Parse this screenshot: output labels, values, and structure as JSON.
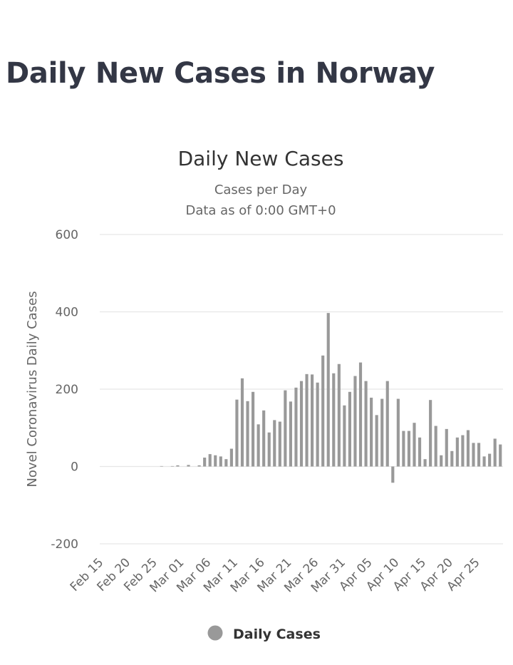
{
  "page": {
    "title": "Daily New Cases in Norway"
  },
  "chart_data": {
    "type": "bar",
    "title": "Daily New Cases",
    "subtitle": "Cases per Day",
    "subtitle2": "Data as of 0:00 GMT+0",
    "ylabel": "Novel Coronavirus Daily Cases",
    "xlabel": "",
    "ylim": [
      -200,
      600
    ],
    "yticks": [
      600,
      400,
      200,
      0,
      -200
    ],
    "grid": true,
    "legend": {
      "position": "bottom-center",
      "entries": [
        "Daily Cases"
      ]
    },
    "colors": {
      "bar": "#999999",
      "grid": "#e6e6e6",
      "legend_marker": "#999999"
    },
    "x_tick_labels": [
      "Feb 15",
      "Feb 20",
      "Feb 25",
      "Mar 01",
      "Mar 06",
      "Mar 11",
      "Mar 16",
      "Mar 21",
      "Mar 26",
      "Mar 31",
      "Apr 05",
      "Apr 10",
      "Apr 15",
      "Apr 20",
      "Apr 25"
    ],
    "dates": [
      "Feb 15",
      "Feb 16",
      "Feb 17",
      "Feb 18",
      "Feb 19",
      "Feb 20",
      "Feb 21",
      "Feb 22",
      "Feb 23",
      "Feb 24",
      "Feb 25",
      "Feb 26",
      "Feb 27",
      "Feb 28",
      "Feb 29",
      "Mar 01",
      "Mar 02",
      "Mar 03",
      "Mar 04",
      "Mar 05",
      "Mar 06",
      "Mar 07",
      "Mar 08",
      "Mar 09",
      "Mar 10",
      "Mar 11",
      "Mar 12",
      "Mar 13",
      "Mar 14",
      "Mar 15",
      "Mar 16",
      "Mar 17",
      "Mar 18",
      "Mar 19",
      "Mar 20",
      "Mar 21",
      "Mar 22",
      "Mar 23",
      "Mar 24",
      "Mar 25",
      "Mar 26",
      "Mar 27",
      "Mar 28",
      "Mar 29",
      "Mar 30",
      "Mar 31",
      "Apr 01",
      "Apr 02",
      "Apr 03",
      "Apr 04",
      "Apr 05",
      "Apr 06",
      "Apr 07",
      "Apr 08",
      "Apr 09",
      "Apr 10",
      "Apr 11",
      "Apr 12",
      "Apr 13",
      "Apr 14",
      "Apr 15",
      "Apr 16",
      "Apr 17",
      "Apr 18",
      "Apr 19",
      "Apr 20",
      "Apr 21",
      "Apr 22",
      "Apr 23",
      "Apr 24",
      "Apr 25",
      "Apr 26",
      "Apr 27",
      "Apr 28",
      "Apr 29"
    ],
    "series": [
      {
        "name": "Daily Cases",
        "values": [
          0,
          0,
          0,
          0,
          0,
          0,
          0,
          0,
          0,
          0,
          0,
          1,
          0,
          1,
          3,
          0,
          4,
          0,
          3,
          23,
          32,
          29,
          26,
          19,
          46,
          173,
          228,
          169,
          193,
          109,
          145,
          88,
          120,
          116,
          197,
          168,
          204,
          221,
          239,
          238,
          217,
          287,
          397,
          241,
          265,
          158,
          193,
          234,
          269,
          221,
          178,
          133,
          175,
          221,
          -42,
          175,
          92,
          92,
          113,
          75,
          19,
          172,
          105,
          29,
          97,
          40,
          75,
          81,
          94,
          61,
          61,
          26,
          33,
          72,
          57
        ]
      }
    ]
  }
}
